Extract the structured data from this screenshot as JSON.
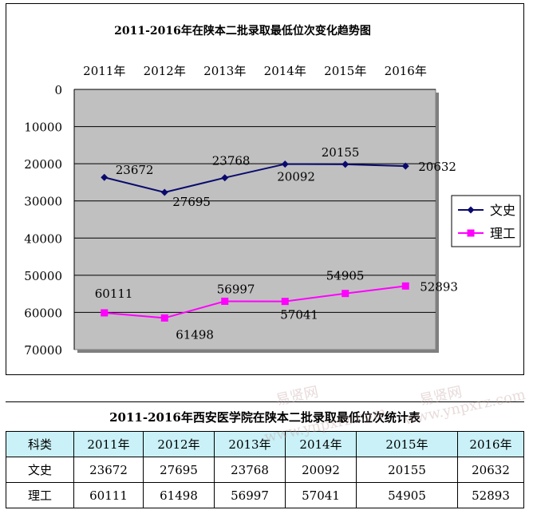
{
  "chart_data": {
    "type": "line",
    "title": "2011-2016年在陕本二批录取最低位次变化趋势图",
    "categories": [
      "2011年",
      "2012年",
      "2013年",
      "2014年",
      "2015年",
      "2016年"
    ],
    "y_ticks": [
      "0",
      "10000",
      "20000",
      "30000",
      "40000",
      "50000",
      "60000",
      "70000"
    ],
    "ylim": [
      0,
      70000
    ],
    "y_reversed": true,
    "x_axis_position": "top",
    "grid": true,
    "legend_position": "right",
    "series": [
      {
        "name": "文史",
        "values": [
          23672,
          27695,
          23768,
          20092,
          20155,
          20632
        ],
        "labels": [
          "23672",
          "27695",
          "23768",
          "20092",
          "20155",
          "20632"
        ],
        "color": "#0a0a6e",
        "marker": "diamond"
      },
      {
        "name": "理工",
        "values": [
          60111,
          61498,
          56997,
          57041,
          54905,
          52893
        ],
        "labels": [
          "60111",
          "61498",
          "56997",
          "57041",
          "54905",
          "52893"
        ],
        "color": "#ff00ff",
        "marker": "square"
      }
    ],
    "plot_background": "#c0c0c0"
  },
  "table": {
    "title": "2011-2016年西安医学院在陕本二批录取最低位次统计表",
    "headers": [
      "科类",
      "2011年",
      "2012年",
      "2013年",
      "2014年",
      "2015年",
      "2016年"
    ],
    "rows": [
      [
        "文史",
        "23672",
        "27695",
        "23768",
        "20092",
        "20155",
        "20632"
      ],
      [
        "理工",
        "60111",
        "61498",
        "56997",
        "57041",
        "54905",
        "52893"
      ]
    ],
    "header_color": "#c9f1f7"
  },
  "watermarks": [
    "易贤网",
    "www.ynpxrz.com",
    "易贤网",
    "www.ynpxrz.com"
  ]
}
